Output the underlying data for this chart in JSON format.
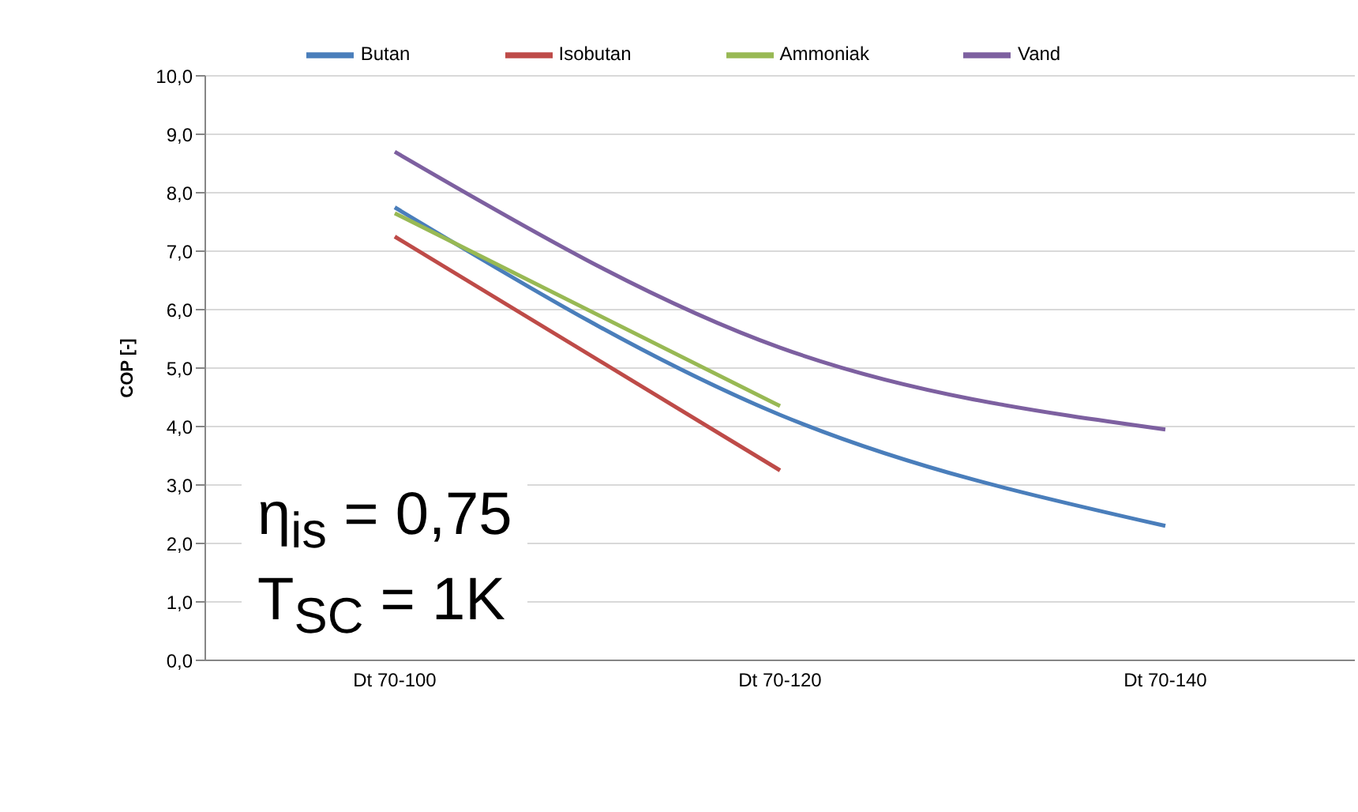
{
  "chart_data": {
    "type": "line",
    "ylabel": "COP [-]",
    "categories": [
      "Dt 70-100",
      "Dt 70-120",
      "Dt 70-140"
    ],
    "series": [
      {
        "name": "Butan",
        "color": "#4a7ebb",
        "values": [
          7.75,
          4.2,
          2.3
        ]
      },
      {
        "name": "Isobutan",
        "color": "#be4b48",
        "values": [
          7.25,
          3.25,
          null
        ]
      },
      {
        "name": "Ammoniak",
        "color": "#98b954",
        "values": [
          7.65,
          4.35,
          null
        ]
      },
      {
        "name": "Vand",
        "color": "#7d60a0",
        "values": [
          8.7,
          5.35,
          3.95
        ]
      }
    ],
    "ylim": [
      0,
      10
    ],
    "yticks": [
      {
        "value": 0,
        "label": "0,0"
      },
      {
        "value": 1,
        "label": "1,0"
      },
      {
        "value": 2,
        "label": "2,0"
      },
      {
        "value": 3,
        "label": "3,0"
      },
      {
        "value": 4,
        "label": "4,0"
      },
      {
        "value": 5,
        "label": "5,0"
      },
      {
        "value": 6,
        "label": "6,0"
      },
      {
        "value": 7,
        "label": "7,0"
      },
      {
        "value": 8,
        "label": "8,0"
      },
      {
        "value": 9,
        "label": "9,0"
      },
      {
        "value": 10,
        "label": "10,0"
      }
    ],
    "grid": "y",
    "legend": "top",
    "marker": "none",
    "line_style": "solid",
    "annotations": [
      "η$_{is}$ = 0,75",
      "T$_{SC}$ = 1K"
    ]
  }
}
